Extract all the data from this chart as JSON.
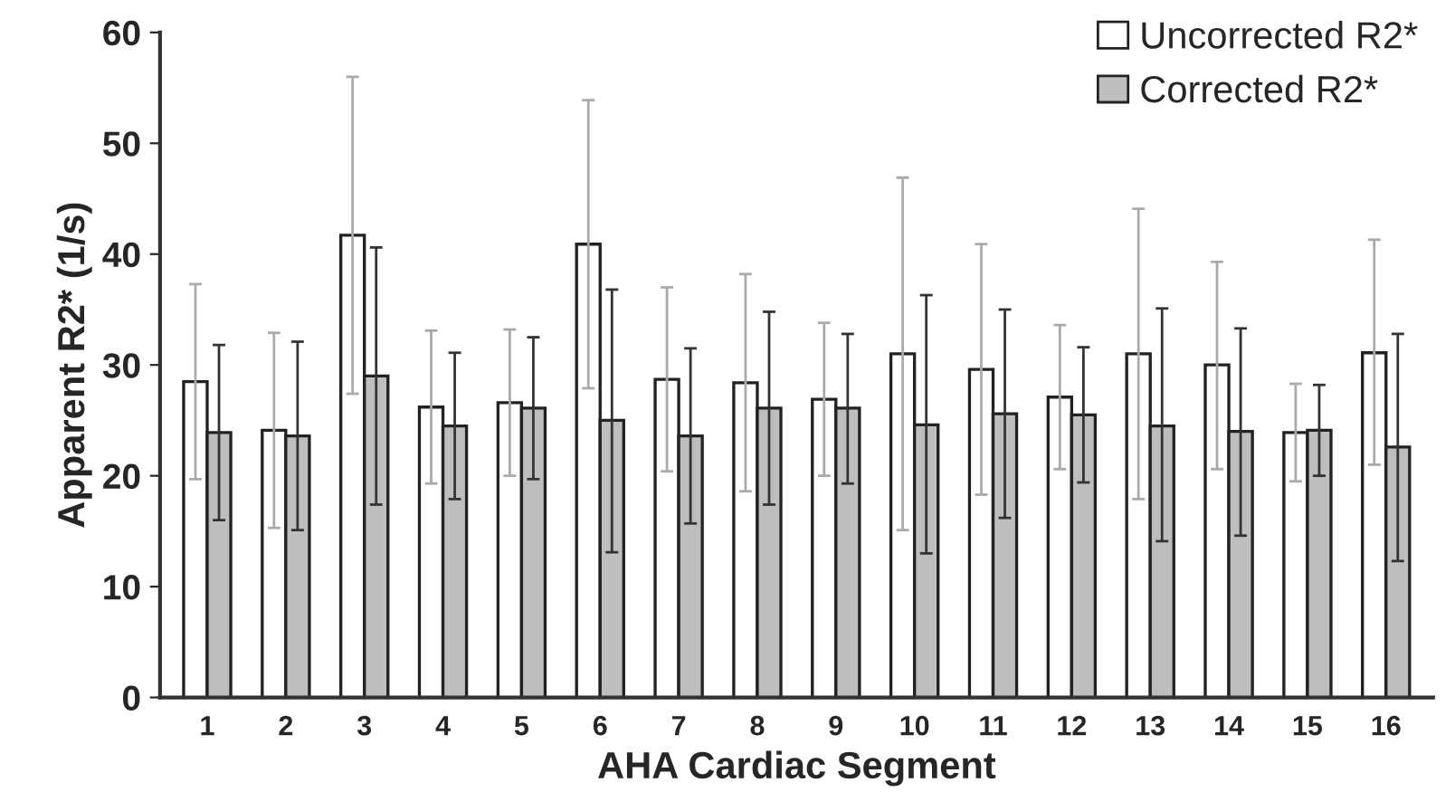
{
  "chart_data": {
    "type": "bar",
    "xlabel": "AHA Cardiac Segment",
    "ylabel": "Apparent R2* (1/s)",
    "categories": [
      "1",
      "2",
      "3",
      "4",
      "5",
      "6",
      "7",
      "8",
      "9",
      "10",
      "11",
      "12",
      "13",
      "14",
      "15",
      "16"
    ],
    "series": [
      {
        "name": "Uncorrected R2*",
        "color": "#ffffff",
        "values": [
          28.5,
          24.1,
          41.7,
          26.2,
          26.6,
          40.9,
          28.7,
          28.4,
          26.9,
          31.0,
          29.6,
          27.1,
          31.0,
          30.0,
          23.9,
          31.1
        ],
        "errors": [
          [
            19.7,
            37.3
          ],
          [
            15.3,
            32.9
          ],
          [
            27.4,
            56.0
          ],
          [
            19.3,
            33.1
          ],
          [
            20.0,
            33.2
          ],
          [
            27.9,
            53.9
          ],
          [
            20.4,
            37.0
          ],
          [
            18.6,
            38.2
          ],
          [
            20.0,
            33.8
          ],
          [
            15.1,
            46.9
          ],
          [
            18.3,
            40.9
          ],
          [
            20.6,
            33.6
          ],
          [
            17.9,
            44.1
          ],
          [
            20.6,
            39.3
          ],
          [
            19.5,
            28.3
          ],
          [
            21.0,
            41.3
          ]
        ]
      },
      {
        "name": "Corrected R2*",
        "color": "#bebebe",
        "values": [
          23.9,
          23.6,
          29.0,
          24.5,
          26.1,
          25.0,
          23.6,
          26.1,
          26.1,
          24.6,
          25.6,
          25.5,
          24.5,
          24.0,
          24.1,
          22.6
        ],
        "errors": [
          [
            16.0,
            31.8
          ],
          [
            15.1,
            32.1
          ],
          [
            17.4,
            40.6
          ],
          [
            17.9,
            31.1
          ],
          [
            19.7,
            32.5
          ],
          [
            13.1,
            36.8
          ],
          [
            15.7,
            31.5
          ],
          [
            17.4,
            34.8
          ],
          [
            19.3,
            32.8
          ],
          [
            13.0,
            36.3
          ],
          [
            16.2,
            35.0
          ],
          [
            19.4,
            31.6
          ],
          [
            14.1,
            35.1
          ],
          [
            14.6,
            33.3
          ],
          [
            20.0,
            28.2
          ],
          [
            12.3,
            32.8
          ]
        ]
      }
    ],
    "ylim": [
      0,
      60
    ],
    "yticks": [
      0,
      10,
      20,
      30,
      40,
      50,
      60
    ],
    "grid": false,
    "legend": "top right"
  }
}
